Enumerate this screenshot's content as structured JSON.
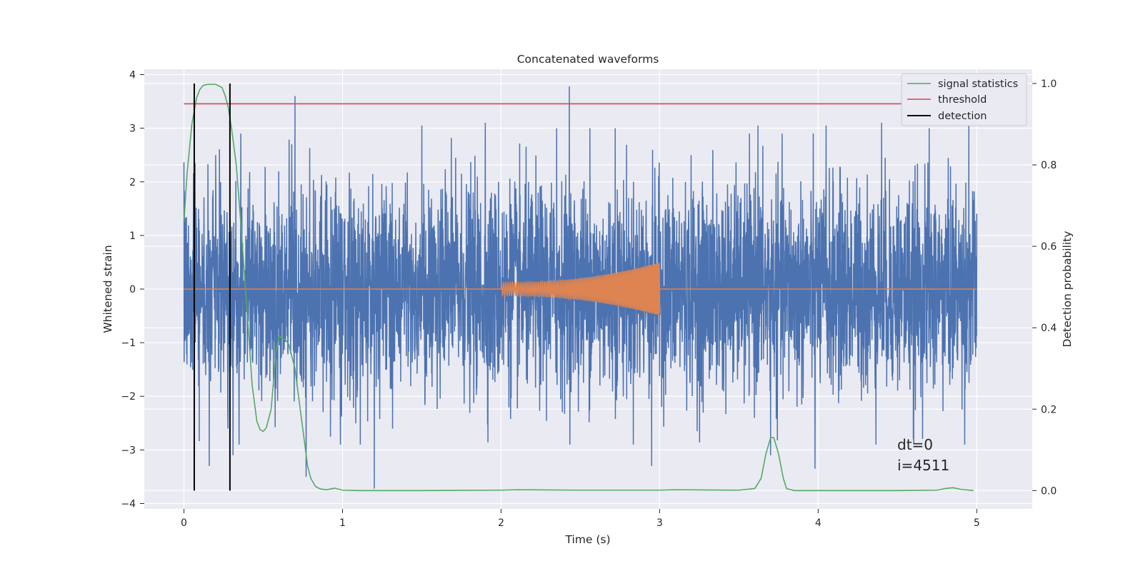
{
  "chart_data": {
    "type": "line",
    "title": "Concatenated waveforms",
    "xlabel": "Time (s)",
    "ylabel": "Whitened strain",
    "y2label": "Detection probability",
    "xlim": [
      -0.25,
      5.35
    ],
    "ylim": [
      -4.1,
      4.1
    ],
    "y2lim": [
      -0.045,
      1.035
    ],
    "xticks": [
      0,
      1,
      2,
      3,
      4,
      5
    ],
    "yticks": [
      -4,
      -3,
      -2,
      -1,
      0,
      1,
      2,
      3,
      4
    ],
    "y2ticks": [
      0.0,
      0.2,
      0.4,
      0.6,
      0.8,
      1.0
    ],
    "xtick_labels": [
      "0",
      "1",
      "2",
      "3",
      "4",
      "5"
    ],
    "ytick_labels": [
      "−4",
      "−3",
      "−2",
      "−1",
      "0",
      "1",
      "2",
      "3",
      "4"
    ],
    "y2tick_labels": [
      "0.0",
      "0.2",
      "0.4",
      "0.6",
      "0.8",
      "1.0"
    ],
    "grid": true,
    "legend_position": "top-right",
    "legend": [
      {
        "label": "signal statistics",
        "color": "#55a868"
      },
      {
        "label": "threshold",
        "color": "#c44e52"
      },
      {
        "label": "detection",
        "color": "#000000"
      }
    ],
    "annotation": [
      "dt=0",
      "i=4511"
    ],
    "series": [
      {
        "kind": "noise strain",
        "axis": "left",
        "color": "#4c72b0",
        "x_range": [
          0,
          5
        ],
        "typical_envelope": [
          -2.4,
          2.4
        ],
        "max": 3.78,
        "min": -3.72,
        "spikes": [
          {
            "x": 0.07,
            "y": 2.35
          },
          {
            "x": 0.16,
            "y": -3.3
          },
          {
            "x": 0.2,
            "y": 2.5
          },
          {
            "x": 0.31,
            "y": -3.1
          },
          {
            "x": 0.7,
            "y": 3.6
          },
          {
            "x": 0.68,
            "y": 2.7
          },
          {
            "x": 0.77,
            "y": -3.5
          },
          {
            "x": 1.2,
            "y": -3.72
          },
          {
            "x": 1.5,
            "y": 3.05
          },
          {
            "x": 1.9,
            "y": 3.1
          },
          {
            "x": 2.35,
            "y": 3.0
          },
          {
            "x": 2.43,
            "y": 3.78
          },
          {
            "x": 2.56,
            "y": 3.0
          },
          {
            "x": 2.72,
            "y": 3.0
          },
          {
            "x": 2.95,
            "y": 3.2
          },
          {
            "x": 3.62,
            "y": 3.05
          },
          {
            "x": 4.05,
            "y": 3.05
          },
          {
            "x": 4.4,
            "y": 3.1
          },
          {
            "x": 4.7,
            "y": 3.0
          },
          {
            "x": 4.95,
            "y": 3.05
          },
          {
            "x": 2.95,
            "y": -3.3
          },
          {
            "x": 3.7,
            "y": -3.1
          },
          {
            "x": 3.98,
            "y": -3.35
          },
          {
            "x": 4.6,
            "y": -2.8
          }
        ]
      },
      {
        "kind": "injected chirp",
        "axis": "left",
        "color": "#dd8452",
        "baseline": 0,
        "chirp": {
          "x_start": 2.0,
          "x_end": 3.0,
          "amp_start": 0.12,
          "amp_end": 0.5,
          "amp_min_end": -0.45
        }
      },
      {
        "name": "signal statistics",
        "axis": "right",
        "color": "#55a868",
        "x": [
          0.0,
          0.02,
          0.05,
          0.08,
          0.1,
          0.12,
          0.15,
          0.2,
          0.24,
          0.26,
          0.28,
          0.3,
          0.33,
          0.36,
          0.4,
          0.43,
          0.46,
          0.48,
          0.5,
          0.52,
          0.55,
          0.58,
          0.6,
          0.62,
          0.64,
          0.66,
          0.7,
          0.74,
          0.78,
          0.8,
          0.83,
          0.86,
          0.9,
          0.95,
          1.0,
          1.1,
          1.5,
          2.0,
          2.1,
          2.5,
          3.0,
          3.1,
          3.5,
          3.6,
          3.64,
          3.67,
          3.7,
          3.72,
          3.75,
          3.78,
          3.8,
          3.85,
          4.0,
          4.5,
          4.75,
          4.8,
          4.85,
          4.9,
          4.98
        ],
        "values": [
          0.66,
          0.78,
          0.9,
          0.965,
          0.985,
          0.995,
          0.998,
          0.998,
          0.99,
          0.97,
          0.94,
          0.89,
          0.8,
          0.65,
          0.43,
          0.26,
          0.17,
          0.15,
          0.145,
          0.155,
          0.2,
          0.34,
          0.38,
          0.375,
          0.37,
          0.36,
          0.3,
          0.18,
          0.06,
          0.03,
          0.01,
          0.004,
          0.002,
          0.006,
          0.001,
          0.0,
          0.0,
          0.001,
          0.002,
          0.001,
          0.001,
          0.002,
          0.001,
          0.005,
          0.03,
          0.09,
          0.13,
          0.13,
          0.09,
          0.03,
          0.005,
          0.0,
          0.0,
          0.0,
          0.001,
          0.005,
          0.007,
          0.003,
          0.0
        ]
      },
      {
        "name": "threshold",
        "axis": "right",
        "color": "#c44e52",
        "x": [
          0,
          5
        ],
        "values": [
          0.95,
          0.95
        ]
      },
      {
        "name": "detection",
        "axis": "right",
        "color": "#000000",
        "vlines": [
          0.065,
          0.29
        ],
        "y_range": [
          0.0,
          1.0
        ]
      }
    ]
  }
}
